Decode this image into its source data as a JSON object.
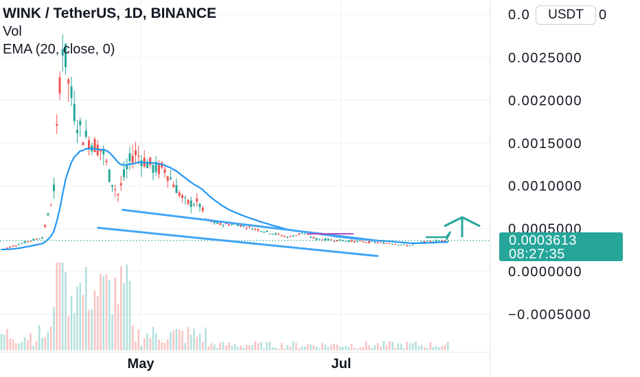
{
  "header": {
    "title": "WINK / TetherUS, 1D, BINANCE",
    "volume_label": "Vol",
    "ema_label": "EMA (20, close, 0)"
  },
  "currency_badge": "USDT",
  "price_tag": {
    "price": "0.0003613",
    "countdown": "08:27:35"
  },
  "colors": {
    "up": "#26a69a",
    "down": "#ef5350",
    "ema": "#2196f3",
    "trendline": "#42a5f5",
    "resistance": "#ab47bc",
    "arrow": "#26a69a",
    "axis_text": "#131722",
    "grid": "#eef0f4"
  },
  "chart_data": {
    "type": "candlestick",
    "symbol": "WINK / TetherUS",
    "interval": "1D",
    "exchange": "BINANCE",
    "yaxis": {
      "ticks": [
        {
          "value": 0.0025,
          "label": "0.0025000"
        },
        {
          "value": 0.002,
          "label": "0.0020000"
        },
        {
          "value": 0.0015,
          "label": "0.0015000"
        },
        {
          "value": 0.001,
          "label": "0.0010000"
        },
        {
          "value": 0.0005,
          "label": "0.0005000"
        },
        {
          "value": 0.0,
          "label": "0.0000000"
        },
        {
          "value": -0.0005,
          "label": "−0.0005000"
        }
      ],
      "top_label_partial": "0.0",
      "top_label_suffix": "0",
      "range": [
        -0.0008,
        0.0031
      ]
    },
    "xaxis": {
      "ticks": [
        "May",
        "Jul"
      ]
    },
    "last_price": 0.0003613,
    "ema_period": 20,
    "trendlines": [
      {
        "name": "upper channel",
        "from": [
          0.25,
          0.00072
        ],
        "to": [
          0.77,
          0.00036
        ]
      },
      {
        "name": "lower channel",
        "from": [
          0.2,
          0.00051
        ],
        "to": [
          0.77,
          0.00018
        ]
      },
      {
        "name": "resistance",
        "from": [
          0.63,
          0.00044
        ],
        "to": [
          0.72,
          0.00044
        ]
      }
    ]
  }
}
